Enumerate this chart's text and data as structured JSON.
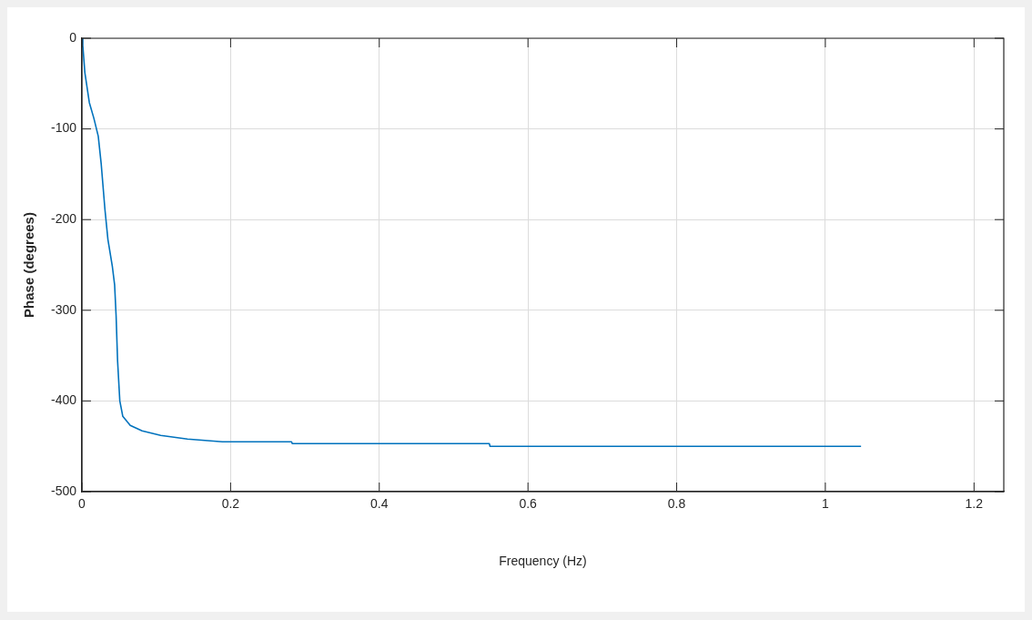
{
  "chart_data": {
    "type": "line",
    "xlabel": "Frequency (Hz)",
    "ylabel": "Phase (degrees)",
    "series": [
      {
        "color": "#0072bd",
        "x": [
          0,
          0.0012,
          0.004,
          0.01,
          0.016,
          0.022,
          0.026,
          0.031,
          0.035,
          0.041,
          0.044,
          0.046,
          0.048,
          0.051,
          0.055,
          0.065,
          0.081,
          0.106,
          0.142,
          0.189,
          0.282,
          0.283,
          0.548,
          0.549,
          1.048
        ],
        "values": [
          0,
          -8,
          -38,
          -71,
          -88,
          -108,
          -139,
          -189,
          -222,
          -252,
          -272,
          -306,
          -356,
          -400,
          -417,
          -427,
          -433,
          -438,
          -442,
          -445,
          -445,
          -447,
          -447,
          -450,
          -450
        ]
      }
    ],
    "xlim": [
      0,
      1.24
    ],
    "xticks": [
      0,
      0.2,
      0.4,
      0.6,
      0.8,
      1,
      1.2
    ],
    "ylim": [
      -500,
      0
    ],
    "yticks": [
      -500,
      -400,
      -300,
      -200,
      -100,
      0
    ],
    "grid": true,
    "legend": false,
    "marker": "none",
    "line_style": "solid"
  }
}
